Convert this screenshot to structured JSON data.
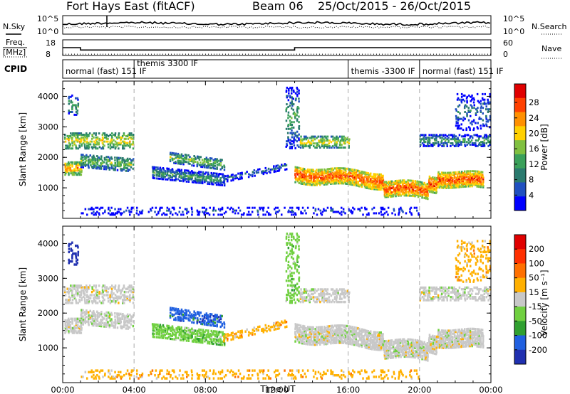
{
  "header": {
    "title": "Fort Hays East (fitACF)",
    "beam": "Beam 06",
    "dates": "25/Oct/2015 - 26/Oct/2015"
  },
  "strip_panel": {
    "left_label": "N.Sky",
    "left_ticks": [
      "10^5",
      "10^0"
    ],
    "right_label": "N.Search",
    "right_ticks": [
      "10^5",
      "10^0"
    ]
  },
  "freq_panel": {
    "left_label_line1": "Freq.",
    "left_label_line2": "[MHz]",
    "left_ticks": [
      "18",
      "8"
    ],
    "right_label": "Nave",
    "right_ticks": [
      "60",
      "0"
    ],
    "freq_steps": [
      {
        "x": 0.0,
        "value": 13.0
      },
      {
        "x": 1.0,
        "value": 11.5
      },
      {
        "x": 13.0,
        "value": 13.0
      },
      {
        "x": 24.0,
        "value": 13.0
      }
    ],
    "nave_value": 5
  },
  "cpid_panel": {
    "label": "CPID",
    "modes": [
      {
        "start": 0.0,
        "text": "normal (fast) 151 IF"
      },
      {
        "start": 4.0,
        "text": "themis 3300 IF"
      },
      {
        "start": 16.0,
        "text": "themis -3300 IF"
      },
      {
        "start": 20.0,
        "text": "normal (fast) 151 IF"
      }
    ]
  },
  "chart_data": [
    {
      "type": "heatmap",
      "name": "power",
      "ylabel": "Slant Range [km]",
      "x_ticks": [
        "00:00",
        "04:00",
        "08:00",
        "12:00",
        "16:00",
        "20:00",
        "00:00"
      ],
      "xlim_hours": [
        0,
        24
      ],
      "ylim_km": [
        0,
        4500
      ],
      "y_ticks": [
        1000,
        2000,
        3000,
        4000
      ],
      "colorbar": {
        "label": "Power [dB]",
        "ticks": [
          "4",
          "8",
          "12",
          "16",
          "20",
          "24",
          "28"
        ],
        "colors": [
          "#0000ff",
          "#2050c0",
          "#2a7a6e",
          "#3aa05a",
          "#80c040",
          "#ffd000",
          "#ff9000",
          "#ff4000",
          "#e00000"
        ]
      },
      "vertical_markers_hours": [
        4,
        16,
        20
      ]
    },
    {
      "type": "heatmap",
      "name": "velocity",
      "ylabel": "Slant Range [km]",
      "x_ticks": [
        "00:00",
        "04:00",
        "08:00",
        "12:00",
        "16:00",
        "20:00",
        "00:00"
      ],
      "xlim_hours": [
        0,
        24
      ],
      "ylim_km": [
        0,
        4500
      ],
      "y_ticks": [
        1000,
        2000,
        3000,
        4000
      ],
      "xlabel": "Time UT",
      "colorbar": {
        "label": "Velocity [m s⁻¹]",
        "ticks": [
          "200",
          "100",
          "50",
          "15",
          "-15",
          "-50",
          "-100",
          "-200"
        ],
        "colors": [
          "#2030b0",
          "#2060e0",
          "#30a030",
          "#70d040",
          "#c8c8c8",
          "#ffb000",
          "#ff7000",
          "#ff3000",
          "#e00000"
        ]
      },
      "vertical_markers_hours": [
        4,
        16,
        20
      ]
    }
  ]
}
